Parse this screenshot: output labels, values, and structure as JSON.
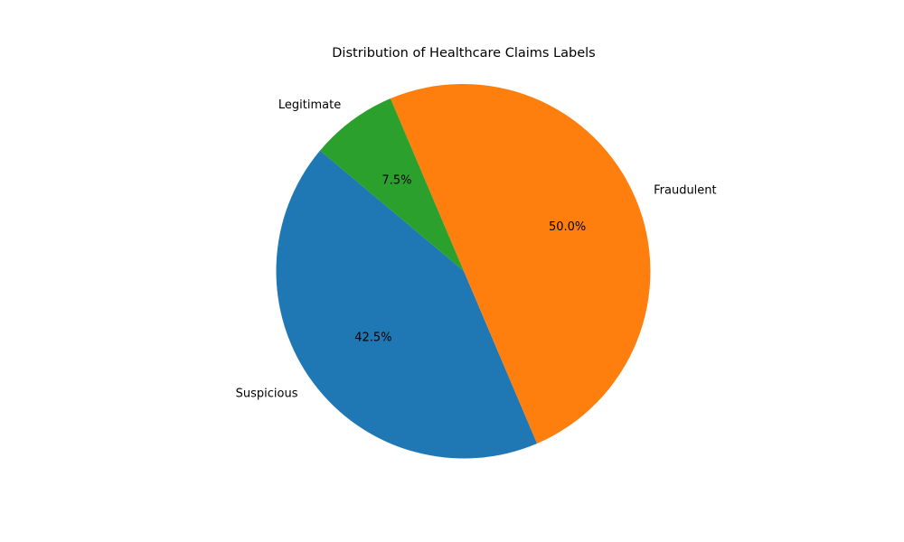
{
  "chart_data": {
    "type": "pie",
    "title": "Distribution of Healthcare Claims Labels",
    "categories": [
      "Suspicious",
      "Fraudulent",
      "Legitimate"
    ],
    "values": [
      42.5,
      50.0,
      7.5
    ],
    "percent_labels": [
      "42.5%",
      "50.0%",
      "7.5%"
    ],
    "colors": [
      "#1f77b4",
      "#ff7f0e",
      "#2ca02c"
    ],
    "start_angle_deg": 140,
    "direction": "counterclockwise",
    "legend": "none"
  }
}
